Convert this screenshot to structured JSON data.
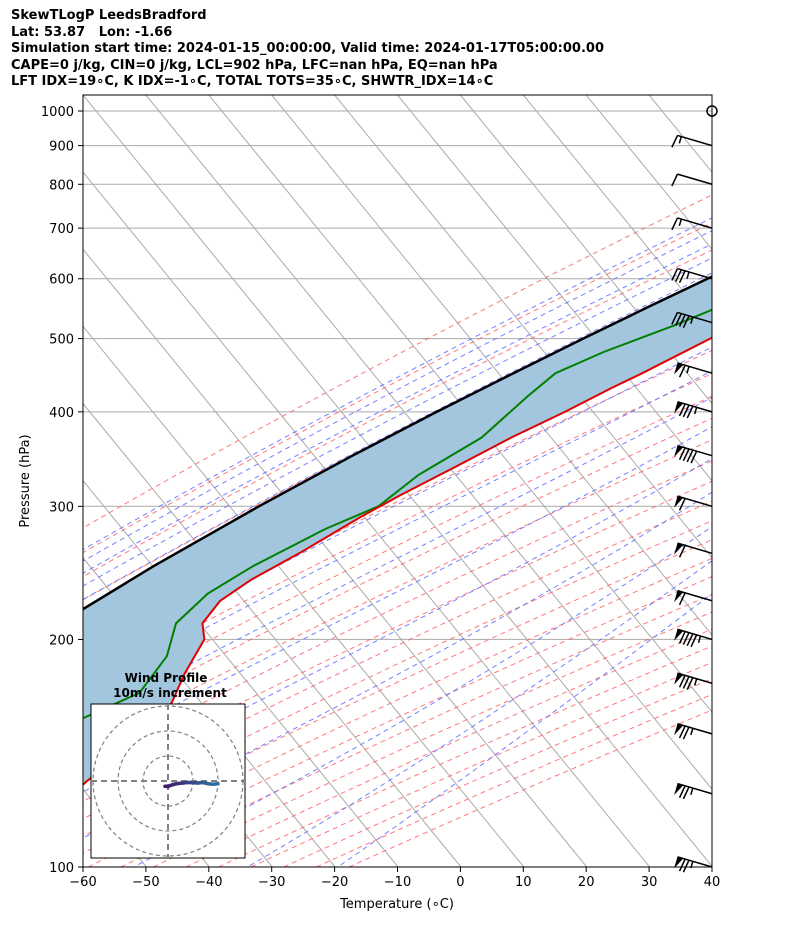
{
  "header": {
    "line1": "SkewTLogP LeedsBradford",
    "line2": "Lat: 53.87   Lon: -1.66",
    "line3": "Simulation start time: 2024-01-15_00:00:00, Valid time: 2024-01-17T05:00:00.00",
    "line4": "CAPE=0 j/kg, CIN=0 j/kg, LCL=902 hPa, LFC=nan hPa, EQ=nan hPa",
    "line5": "LFT IDX=19∘C, K IDX=-1∘C, TOTAL TOTS=35∘C, SHWTR_IDX=14∘C"
  },
  "chart_data": {
    "type": "line",
    "subtype": "skew-T log-P",
    "xlabel": "Temperature (∘C)",
    "ylabel": "Pressure (hPa)",
    "xlim": [
      -60,
      40
    ],
    "ylim": [
      1050,
      100
    ],
    "x_ticks": [
      -60,
      -50,
      -40,
      -30,
      -20,
      -10,
      0,
      10,
      20,
      30,
      40
    ],
    "y_ticks": [
      100,
      200,
      300,
      400,
      500,
      600,
      700,
      800,
      900,
      1000
    ],
    "y_scale": "log",
    "grid": true,
    "colors": {
      "temperature": "#e00000",
      "dewpoint": "#007f00",
      "parcel": "#000000",
      "shading": "#a3c6df",
      "dry_adiabat": "#ff6060",
      "moist_adiabat": "#5a6cff",
      "mixing_ratio": "#8a2be2",
      "isotherm": "#aaaaaa",
      "hodograph_start": "#3d1a67",
      "hodograph_end": "#2e6fa0"
    },
    "series": [
      {
        "key": "temperature",
        "pressure_hPa": [
          985,
          975,
          950,
          925,
          900,
          850,
          800,
          750,
          700,
          650,
          600,
          550,
          500,
          450,
          430,
          400,
          370,
          340,
          310,
          290,
          260,
          240,
          225,
          210,
          200,
          180,
          165,
          150,
          130,
          115,
          100
        ],
        "temp_C": [
          -0.5,
          1,
          1.8,
          1.5,
          1,
          -1.2,
          -3.5,
          -6.4,
          -9.9,
          -13.6,
          -17.9,
          -23,
          -28.8,
          -35.1,
          -38.1,
          -42.4,
          -47.6,
          -52.4,
          -57.8,
          -61.3,
          -66.3,
          -70.5,
          -72.7,
          -72.6,
          -70.2,
          -68.9,
          -67.2,
          -67.3,
          -70.5,
          -72.4,
          -76.1
        ]
      },
      {
        "key": "dewpoint",
        "pressure_hPa": [
          975,
          950,
          925,
          900,
          875,
          850,
          820,
          800,
          770,
          740,
          700,
          660,
          620,
          580,
          550,
          520,
          480,
          450,
          420,
          370,
          330,
          300,
          280,
          250,
          230,
          210,
          190,
          170,
          150,
          140,
          130,
          115,
          100
        ],
        "temp_C": [
          -2.6,
          -8.8,
          -12.8,
          -12.1,
          -10.3,
          -8.8,
          -7.6,
          -7.9,
          -8.9,
          -11.2,
          -15.7,
          -24.2,
          -29.5,
          -27.6,
          -31.6,
          -36.3,
          -44,
          -48.9,
          -50.3,
          -52.3,
          -57.5,
          -59.8,
          -65.3,
          -72,
          -75.6,
          -76.8,
          -74,
          -73.6,
          -82.8,
          -82.1,
          -83,
          -84.6,
          -87.6
        ]
      },
      {
        "key": "parcel",
        "pressure_hPa": [
          975,
          950,
          925,
          902,
          875,
          850,
          800,
          750,
          700,
          650,
          600,
          550,
          500,
          450,
          400,
          350,
          300,
          250,
          200,
          150,
          100
        ],
        "temp_C": [
          -2.6,
          -5.1,
          -7.7,
          -9.6,
          -11.2,
          -12.8,
          -16.6,
          -21.1,
          -26.2,
          -31.5,
          -37,
          -42.8,
          -49,
          -55.6,
          -62.8,
          -70.5,
          -78.8,
          -87.8,
          -97.4,
          -107.8,
          -119
        ]
      }
    ],
    "wind_barbs": [
      {
        "pressure_hPa": 100,
        "speed_kt": 75
      },
      {
        "pressure_hPa": 125,
        "speed_kt": 75
      },
      {
        "pressure_hPa": 150,
        "speed_kt": 75
      },
      {
        "pressure_hPa": 175,
        "speed_kt": 85
      },
      {
        "pressure_hPa": 200,
        "speed_kt": 95
      },
      {
        "pressure_hPa": 225,
        "speed_kt": 60
      },
      {
        "pressure_hPa": 260,
        "speed_kt": 60
      },
      {
        "pressure_hPa": 300,
        "speed_kt": 60
      },
      {
        "pressure_hPa": 350,
        "speed_kt": 90
      },
      {
        "pressure_hPa": 400,
        "speed_kt": 85
      },
      {
        "pressure_hPa": 450,
        "speed_kt": 65
      },
      {
        "pressure_hPa": 525,
        "speed_kt": 45
      },
      {
        "pressure_hPa": 600,
        "speed_kt": 35
      },
      {
        "pressure_hPa": 700,
        "speed_kt": 15
      },
      {
        "pressure_hPa": 800,
        "speed_kt": 10
      },
      {
        "pressure_hPa": 900,
        "speed_kt": 15
      },
      {
        "pressure_hPa": 1000,
        "speed_kt": 0
      }
    ],
    "hodograph": {
      "title": "Wind Profile",
      "subtitle": "10m/s increment",
      "u_ms": [
        -1.2,
        0,
        2,
        4,
        6,
        8,
        10,
        12,
        14,
        16,
        18,
        20
      ],
      "v_ms": [
        -2.1,
        -2.2,
        -1.4,
        -1,
        -0.8,
        -0.6,
        -0.7,
        -0.8,
        -0.6,
        -1.1,
        -1.3,
        -1.1
      ]
    }
  }
}
